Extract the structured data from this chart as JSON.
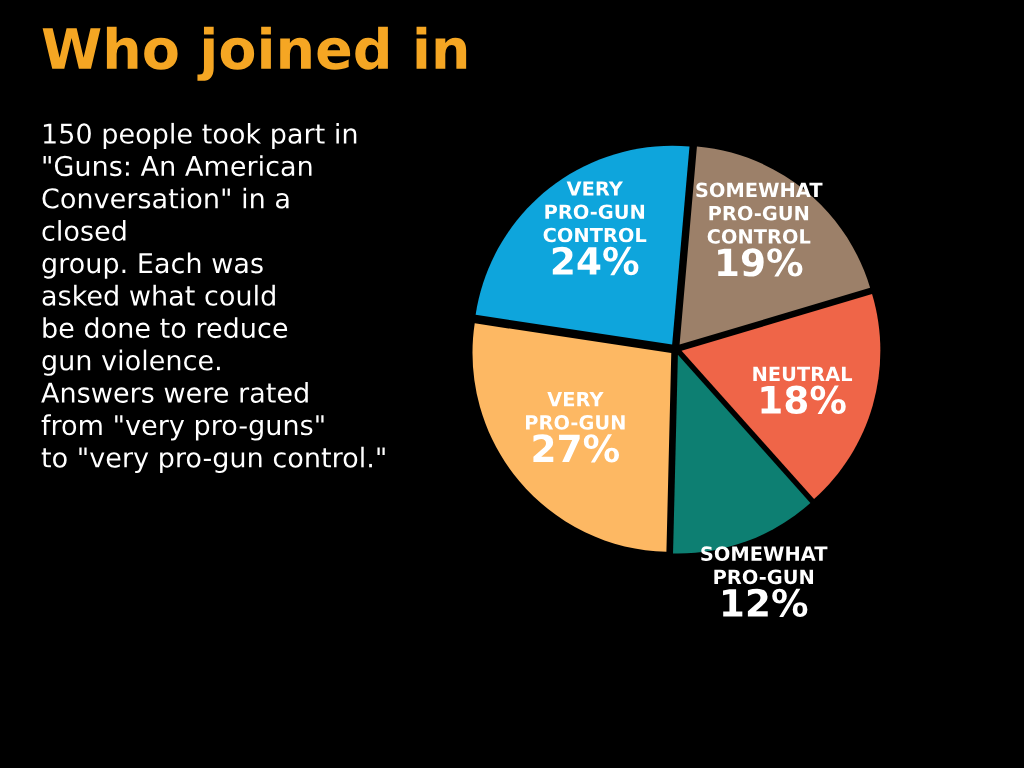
{
  "chart_data": {
    "type": "pie",
    "title": "Who joined in",
    "subtitle": "150 people took part in\n\"Guns: An American\nConversation\" in a\nclosed\ngroup. Each was\nasked what could\nbe done to reduce\ngun violence.\nAnswers were rated\nfrom \"very pro-guns\"\nto \"very pro-gun control.\"",
    "categories": [
      "SOMEWHAT\nPRO-GUN\nCONTROL",
      "NEUTRAL",
      "SOMEWHAT\nPRO-GUN",
      "VERY\nPRO-GUN",
      "VERY\nPRO-GUN\nCONTROL"
    ],
    "values": [
      19,
      18,
      12,
      27,
      24
    ],
    "value_labels": [
      "19%",
      "18%",
      "12%",
      "27%",
      "24%"
    ],
    "colors": [
      "#9c8069",
      "#ef6548",
      "#0d7f72",
      "#fdb863",
      "#0ea5dc"
    ]
  }
}
